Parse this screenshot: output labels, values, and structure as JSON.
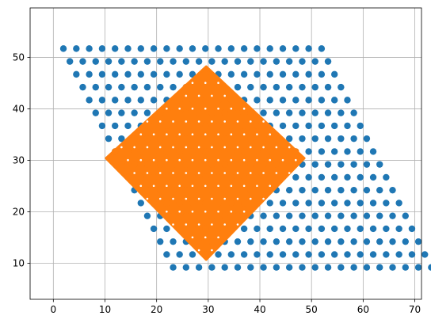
{
  "chart_data": {
    "type": "scatter",
    "title": "",
    "xlabel": "",
    "ylabel": "",
    "xlim": [
      -4.5,
      71.3
    ],
    "ylim": [
      3.0,
      59.6
    ],
    "xticks": [
      0,
      10,
      20,
      30,
      40,
      50,
      60,
      70
    ],
    "yticks": [
      10,
      20,
      30,
      40,
      50
    ],
    "xtick_labels": [
      "0",
      "10",
      "20",
      "30",
      "40",
      "50",
      "60",
      "70"
    ],
    "ytick_labels": [
      "10",
      "20",
      "30",
      "40",
      "50"
    ],
    "grid": true,
    "legend": "none",
    "series": [
      {
        "color": "#1f77b4",
        "description": "hexagonal-lattice points filling a parallelogram",
        "lattice": {
          "rows": 18,
          "columns": 21,
          "x_spacing": 2.5,
          "y_step": 2.5,
          "row_shift": 1.25,
          "origin_x": 23.2,
          "origin_y": 9.2
        }
      },
      {
        "color": "#ff7f0e",
        "description": "lattice points inside a diamond region plus its boundary",
        "diamond": {
          "vertices": [
            [
              29.6,
              48.2
            ],
            [
              48.6,
              30.4
            ],
            [
              29.6,
              10.7
            ],
            [
              10.2,
              30.4
            ]
          ]
        }
      }
    ]
  }
}
